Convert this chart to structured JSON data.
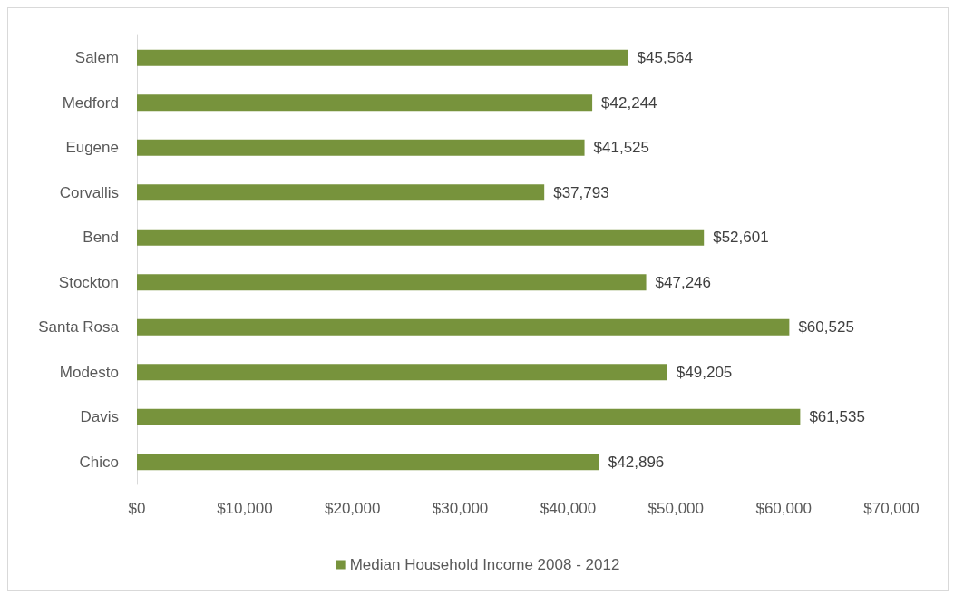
{
  "chart_data": {
    "type": "bar",
    "orientation": "horizontal",
    "categories": [
      "Salem",
      "Medford",
      "Eugene",
      "Corvallis",
      "Bend",
      "Stockton",
      "Santa Rosa",
      "Modesto",
      "Davis",
      "Chico"
    ],
    "series": [
      {
        "name": "Median Household Income 2008 - 2012",
        "color": "#77933c",
        "values": [
          45564,
          42244,
          41525,
          37793,
          52601,
          47246,
          60525,
          49205,
          61535,
          42896
        ],
        "value_labels": [
          "$45,564",
          "$42,244",
          "$41,525",
          "$37,793",
          "$52,601",
          "$47,246",
          "$60,525",
          "$49,205",
          "$61,535",
          "$42,896"
        ]
      }
    ],
    "xlim": [
      0,
      70000
    ],
    "xticks": [
      {
        "value": 0,
        "label": "$0"
      },
      {
        "value": 10000,
        "label": "$10,000"
      },
      {
        "value": 20000,
        "label": "$20,000"
      },
      {
        "value": 30000,
        "label": "$30,000"
      },
      {
        "value": 40000,
        "label": "$40,000"
      },
      {
        "value": 50000,
        "label": "$50,000"
      },
      {
        "value": 60000,
        "label": "$60,000"
      },
      {
        "value": 70000,
        "label": "$70,000"
      }
    ],
    "grid": false,
    "legend": "bottom"
  }
}
